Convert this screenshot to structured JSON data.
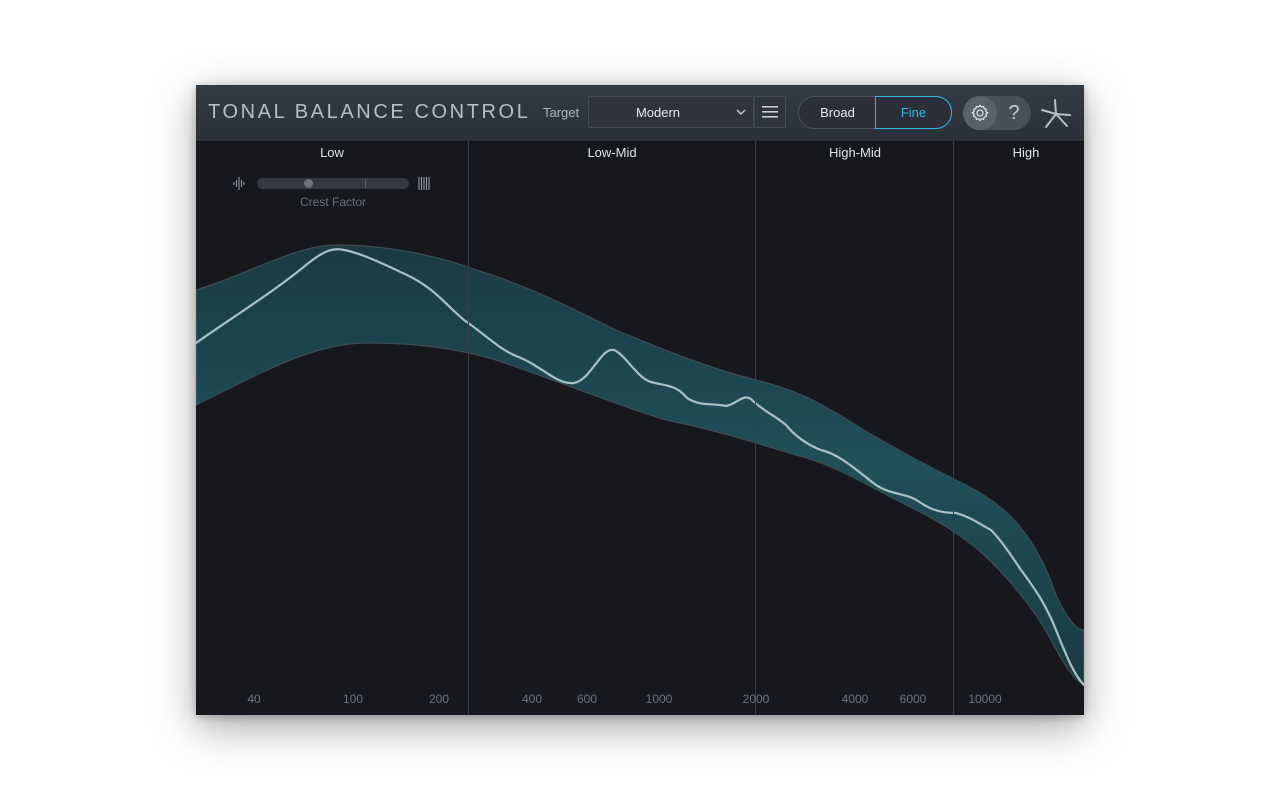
{
  "header": {
    "title": "TONAL BALANCE CONTROL",
    "target_label": "Target",
    "target_value": "Modern",
    "view_options": [
      "Broad",
      "Fine"
    ],
    "view_selected": "Fine",
    "help_label": "?"
  },
  "bands": [
    "Low",
    "Low-Mid",
    "High-Mid",
    "High"
  ],
  "crest_factor": {
    "label": "Crest Factor",
    "level": 0.32
  },
  "frequency_ticks": [
    "40",
    "100",
    "200",
    "400",
    "600",
    "1000",
    "2000",
    "4000",
    "6000",
    "10000"
  ],
  "colors": {
    "accent": "#33b6e6",
    "band_fill": "#1f5058",
    "curve": "#a9c0c4",
    "background": "#16181d"
  }
}
